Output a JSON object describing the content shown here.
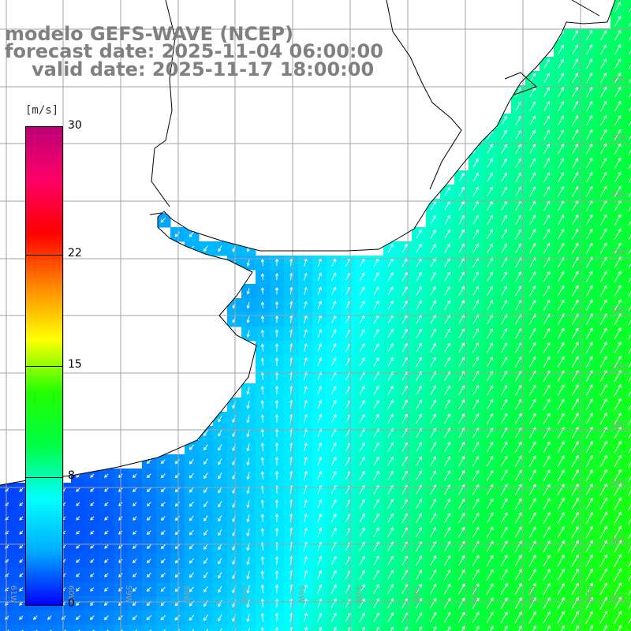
{
  "header": {
    "line1": "modelo GEFS-WAVE (NCEP)",
    "line2": "forecast date: 2025-11-04 06:00:00",
    "line3": "valid date: 2025-11-17 18:00:00"
  },
  "colorbar": {
    "unit": "[m/s]",
    "ticks": [
      "30",
      "22",
      "15",
      "8",
      "0"
    ],
    "tick_values": [
      30,
      22,
      15,
      8,
      0
    ],
    "min": 0,
    "max": 30,
    "stops": [
      "#0000ff",
      "#00aaff",
      "#00ffff",
      "#00ff44",
      "#22ff00",
      "#ffff00",
      "#ff8800",
      "#ff0000",
      "#ff0066",
      "#bb0077"
    ]
  },
  "map": {
    "parameter": "wind speed",
    "grid_color": "#a0a0a0",
    "coast_color": "#000000",
    "land_color": "#ffffff",
    "lat_labels": [
      "32S",
      "33S",
      "34S",
      "35S",
      "36S",
      "37S",
      "38S",
      "39S",
      "40S",
      "41S"
    ],
    "lon_labels": [
      "61W",
      "60W",
      "59W",
      "58W",
      "57W",
      "56W",
      "55W",
      "54W",
      "53W",
      "52W",
      "51W"
    ]
  }
}
